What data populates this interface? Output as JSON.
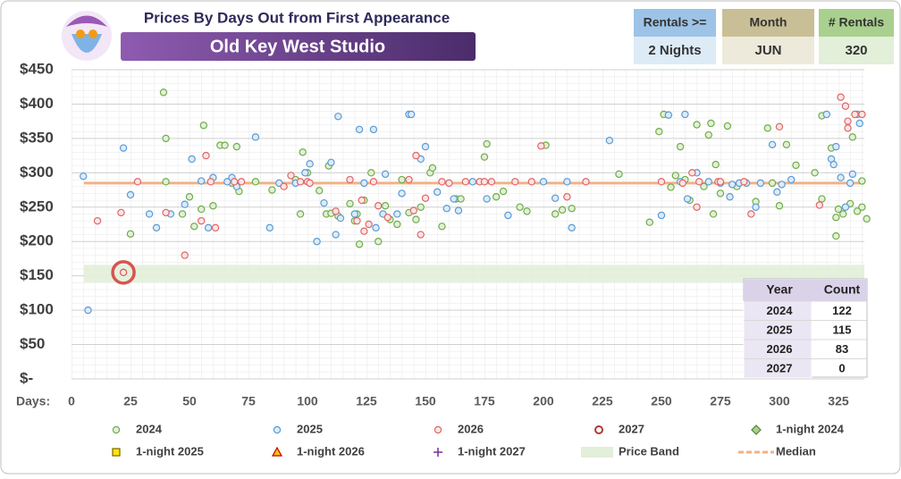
{
  "header": {
    "title": "Prices By Days Out from First Appearance",
    "subtitle": "Old Key West Studio"
  },
  "filters": [
    {
      "label": "Rentals >=",
      "value": "2 Nights",
      "head_color": "#9dc3e6",
      "body_color": "#ddebf7"
    },
    {
      "label": "Month",
      "value": "JUN",
      "head_color": "#c9bf97",
      "body_color": "#eeeadb"
    },
    {
      "label": "# Rentals",
      "value": "320",
      "head_color": "#a9d08e",
      "body_color": "#e2efd9"
    }
  ],
  "year_table": {
    "columns": [
      "Year",
      "Count"
    ],
    "rows": [
      [
        "2024",
        "122"
      ],
      [
        "2025",
        "115"
      ],
      [
        "2026",
        "83"
      ],
      [
        "2027",
        "0"
      ]
    ]
  },
  "chart_data": {
    "type": "scatter",
    "x_label": "Days:",
    "xlim": [
      0,
      336
    ],
    "xticks": [
      0,
      25,
      50,
      75,
      100,
      125,
      150,
      175,
      200,
      225,
      250,
      275,
      300,
      325
    ],
    "ylim": [
      0,
      450
    ],
    "yticks": [
      {
        "value": 0,
        "label": "$-"
      },
      {
        "value": 50,
        "label": "$50"
      },
      {
        "value": 100,
        "label": "$100"
      },
      {
        "value": 150,
        "label": "$150"
      },
      {
        "value": 200,
        "label": "$200"
      },
      {
        "value": 250,
        "label": "$250"
      },
      {
        "value": 300,
        "label": "$300"
      },
      {
        "value": 350,
        "label": "$350"
      },
      {
        "value": 400,
        "label": "$400"
      },
      {
        "value": 450,
        "label": "$450"
      }
    ],
    "grid": true,
    "series": [
      {
        "name": "2024",
        "marker": "circle",
        "color": "#70ad47",
        "fill": "#e2efd9",
        "x": [
          25,
          39,
          40,
          40,
          47,
          50,
          52,
          55,
          56,
          60,
          63,
          65,
          68,
          70,
          71,
          78,
          85,
          95,
          97,
          98,
          100,
          105,
          108,
          109,
          110,
          113,
          118,
          120,
          121,
          122,
          124,
          127,
          130,
          133,
          135,
          138,
          140,
          143,
          146,
          148,
          152,
          153,
          157,
          163,
          165,
          175,
          176,
          180,
          183,
          190,
          193,
          201,
          205,
          208,
          212,
          232,
          245,
          249,
          251,
          254,
          256,
          258,
          260,
          262,
          265,
          268,
          270,
          271,
          272,
          273,
          275,
          278,
          282,
          290,
          295,
          297,
          300,
          303,
          307,
          315,
          318,
          318,
          322,
          324,
          324,
          325,
          327,
          330,
          331,
          333,
          335,
          335,
          337
        ],
        "y": [
          211,
          417,
          350,
          287,
          240,
          265,
          222,
          247,
          369,
          252,
          340,
          340,
          285,
          338,
          273,
          287,
          275,
          290,
          240,
          330,
          300,
          274,
          240,
          310,
          241,
          237,
          255,
          230,
          240,
          196,
          260,
          300,
          200,
          252,
          232,
          225,
          290,
          242,
          232,
          250,
          300,
          307,
          222,
          262,
          262,
          323,
          342,
          265,
          273,
          250,
          244,
          340,
          240,
          246,
          248,
          298,
          228,
          360,
          385,
          279,
          296,
          338,
          290,
          260,
          370,
          280,
          355,
          372,
          240,
          312,
          270,
          368,
          280,
          258,
          365,
          285,
          252,
          341,
          311,
          300,
          383,
          262,
          336,
          235,
          208,
          247,
          240,
          255,
          352,
          244,
          250,
          288,
          233
        ]
      },
      {
        "name": "2025",
        "marker": "circle",
        "color": "#5b9bd5",
        "fill": "#ddebf7",
        "x": [
          5,
          7,
          22,
          25,
          33,
          36,
          42,
          48,
          51,
          55,
          58,
          60,
          66,
          68,
          70,
          78,
          84,
          88,
          95,
          99,
          101,
          104,
          107,
          110,
          112,
          113,
          114,
          120,
          122,
          124,
          128,
          129,
          132,
          133,
          138,
          140,
          143,
          144,
          148,
          150,
          155,
          159,
          162,
          164,
          170,
          176,
          185,
          200,
          205,
          210,
          212,
          228,
          250,
          253,
          258,
          260,
          261,
          265,
          270,
          275,
          279,
          280,
          283,
          286,
          290,
          292,
          297,
          299,
          301,
          305,
          320,
          322,
          323,
          324,
          326,
          328,
          330,
          331,
          333,
          334
        ],
        "y": [
          295,
          100,
          336,
          268,
          240,
          220,
          240,
          254,
          320,
          288,
          220,
          293,
          287,
          293,
          280,
          352,
          220,
          285,
          285,
          300,
          313,
          200,
          256,
          315,
          210,
          382,
          234,
          240,
          363,
          285,
          363,
          220,
          240,
          298,
          240,
          270,
          385,
          385,
          320,
          338,
          272,
          248,
          262,
          245,
          287,
          262,
          238,
          287,
          263,
          287,
          220,
          347,
          238,
          384,
          287,
          385,
          262,
          300,
          287,
          285,
          265,
          283,
          285,
          285,
          250,
          285,
          341,
          272,
          283,
          290,
          385,
          320,
          312,
          338,
          293,
          250,
          285,
          298,
          385,
          372
        ]
      },
      {
        "name": "2026",
        "marker": "circle",
        "color": "#e06666",
        "fill": "#fbe5e5",
        "x": [
          11,
          21,
          28,
          40,
          48,
          55,
          57,
          59,
          61,
          69,
          72,
          90,
          93,
          97,
          100,
          101,
          112,
          118,
          121,
          123,
          124,
          126,
          128,
          130,
          134,
          143,
          145,
          146,
          148,
          150,
          157,
          160,
          167,
          173,
          175,
          178,
          188,
          195,
          199,
          210,
          218,
          250,
          259,
          263,
          265,
          266,
          274,
          275,
          285,
          288,
          300,
          317,
          326,
          328,
          329,
          329,
          332,
          335
        ],
        "y": [
          230,
          242,
          287,
          242,
          180,
          230,
          325,
          287,
          220,
          287,
          287,
          280,
          296,
          287,
          287,
          285,
          244,
          290,
          230,
          260,
          215,
          225,
          287,
          252,
          235,
          290,
          245,
          325,
          210,
          263,
          287,
          285,
          287,
          287,
          287,
          287,
          287,
          287,
          339,
          265,
          287,
          287,
          285,
          300,
          250,
          287,
          287,
          287,
          287,
          240,
          367,
          253,
          410,
          397,
          375,
          365,
          385,
          385
        ]
      },
      {
        "name": "2027",
        "marker": "ring",
        "color": "#b03a2e",
        "fill": "#ffffff",
        "x": [],
        "y": []
      },
      {
        "name": "1-night 2024",
        "marker": "diamond",
        "color": "#548235",
        "fill": "#a9d08e",
        "x": [],
        "y": []
      },
      {
        "name": "1-night 2025",
        "marker": "square",
        "color": "#7f6000",
        "fill": "#ffe600",
        "x": [],
        "y": []
      },
      {
        "name": "1-night 2026",
        "marker": "triangle",
        "color": "#c00000",
        "fill": "#ffc000",
        "x": [],
        "y": []
      },
      {
        "name": "1-night 2027",
        "marker": "plus",
        "color": "#7030a0",
        "fill": "#7030a0",
        "x": [],
        "y": []
      }
    ],
    "price_band": {
      "name": "Price Band",
      "range": [
        140,
        166
      ],
      "color": "#e2efd9"
    },
    "median": {
      "name": "Median",
      "value": 285,
      "color": "#f4b183"
    },
    "highlight": {
      "x": 22,
      "y": 155,
      "color": "#d9534f"
    }
  }
}
